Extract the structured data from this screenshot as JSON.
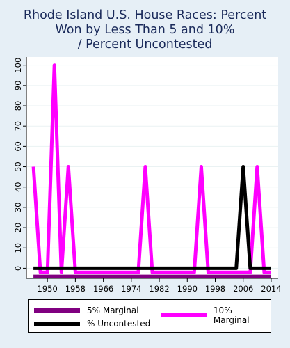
{
  "chart_data": {
    "type": "line",
    "title_lines": [
      "Rhode Island U.S. House Races: Percent",
      "Won by Less Than 5 and 10%",
      "/ Percent Uncontested"
    ],
    "xlabel": "",
    "ylabel": "",
    "x_ticks": [
      1950,
      1958,
      1966,
      1974,
      1982,
      1990,
      1998,
      2006,
      2014
    ],
    "y_ticks": [
      0,
      10,
      20,
      30,
      40,
      50,
      60,
      70,
      80,
      90,
      100
    ],
    "xlim": [
      1944,
      2016
    ],
    "ylim": [
      -5,
      104
    ],
    "grid": true,
    "legend_position": "bottom",
    "x": [
      1946,
      1948,
      1950,
      1952,
      1954,
      1956,
      1958,
      1960,
      1962,
      1964,
      1966,
      1968,
      1970,
      1972,
      1974,
      1976,
      1978,
      1980,
      1982,
      1984,
      1986,
      1988,
      1990,
      1992,
      1994,
      1996,
      1998,
      2000,
      2002,
      2004,
      2006,
      2008,
      2010,
      2012,
      2014
    ],
    "series": [
      {
        "name": "5% Marginal",
        "color": "#800080",
        "values": [
          -4,
          -4,
          -4,
          -4,
          -4,
          -4,
          -4,
          -4,
          -4,
          -4,
          -4,
          -4,
          -4,
          -4,
          -4,
          -4,
          -4,
          -4,
          -4,
          -4,
          -4,
          -4,
          -4,
          -4,
          -4,
          -4,
          -4,
          -4,
          -4,
          -4,
          -4,
          -4,
          -4,
          -4,
          -4
        ]
      },
      {
        "name": "10% Marginal",
        "color": "#ff00ff",
        "values": [
          50,
          -2,
          -2,
          100,
          -2,
          50,
          -2,
          -2,
          -2,
          -2,
          -2,
          -2,
          -2,
          -2,
          -2,
          -2,
          50,
          -2,
          -2,
          -2,
          -2,
          -2,
          -2,
          -2,
          50,
          -2,
          -2,
          -2,
          -2,
          -2,
          -2,
          -2,
          50,
          -2,
          -2
        ]
      },
      {
        "name": "% Uncontested",
        "color": "#000000",
        "values": [
          0,
          0,
          0,
          0,
          0,
          0,
          0,
          0,
          0,
          0,
          0,
          0,
          0,
          0,
          0,
          0,
          0,
          0,
          0,
          0,
          0,
          0,
          0,
          0,
          0,
          0,
          0,
          0,
          0,
          0,
          50,
          0,
          0,
          0,
          0
        ]
      }
    ]
  }
}
